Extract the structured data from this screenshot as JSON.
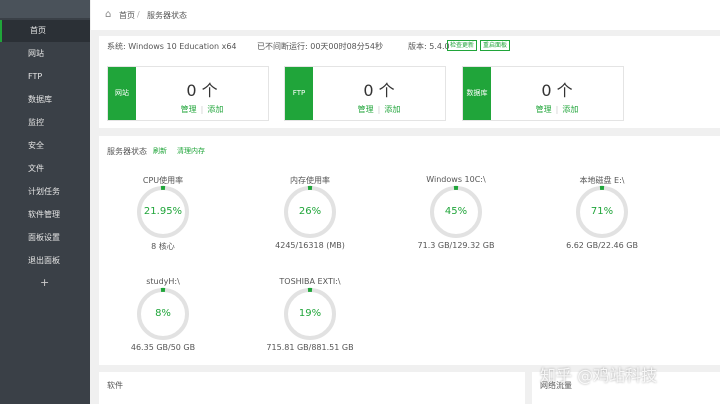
{
  "sidebar": {
    "menu": [
      "首页",
      "网站",
      "FTP",
      "数据库",
      "监控",
      "安全",
      "文件",
      "计划任务",
      "软件管理",
      "面板设置",
      "退出面板"
    ],
    "add": "+"
  },
  "breadcrumb": [
    "首页",
    "服务器状态"
  ],
  "system": {
    "os": "系统: Windows 10 Education x64",
    "uptime": "已不间断运行: 00天00时08分54秒",
    "version": "版本: 5.4.0",
    "buttons": [
      "检查更新",
      "重启面板"
    ]
  },
  "summary": [
    {
      "label": "网站",
      "count": "0 个",
      "actions": [
        "管理",
        "添加"
      ]
    },
    {
      "label": "FTP",
      "count": "0 个",
      "actions": [
        "管理",
        "添加"
      ]
    },
    {
      "label": "数据库",
      "count": "0 个",
      "actions": [
        "管理",
        "添加"
      ]
    }
  ],
  "status": {
    "title": "服务器状态",
    "actions": [
      "刷新",
      "清理内存"
    ],
    "gauges": [
      {
        "name": "CPU使用率",
        "value": "21.95%",
        "detail": "8 核心"
      },
      {
        "name": "内存使用率",
        "value": "26%",
        "detail": "4245/16318 (MB)"
      },
      {
        "name": "Windows 10C:\\",
        "value": "45%",
        "detail": "71.3 GB/129.32 GB"
      },
      {
        "name": "本地磁盘 E:\\",
        "value": "71%",
        "detail": "6.62 GB/22.46 GB"
      },
      {
        "name": "studyH:\\",
        "value": "8%",
        "detail": "46.35 GB/50 GB"
      },
      {
        "name": "TOSHIBA EXTI:\\",
        "value": "19%",
        "detail": "715.81 GB/881.51 GB"
      }
    ]
  },
  "bottom": [
    "软件",
    "网络流量"
  ],
  "watermark": "知乎 @鸡站科技"
}
